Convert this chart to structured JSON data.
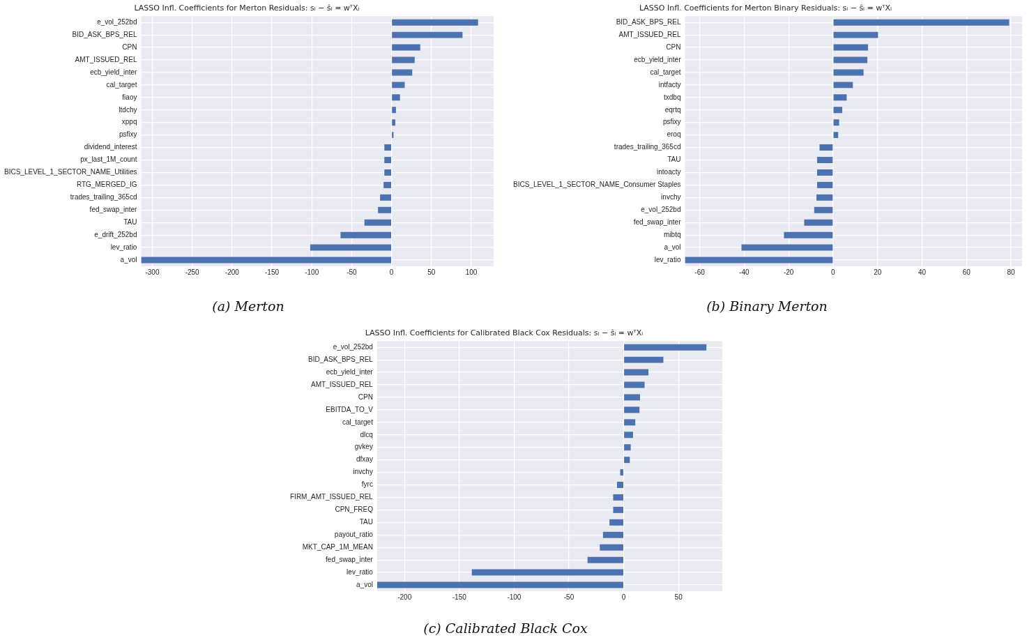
{
  "chart_data": [
    {
      "type": "bar",
      "orientation": "horizontal",
      "title": "LASSO Infl. Coefficients for Merton Residuals: sᵢ − ŝᵢ = wᵀXᵢ",
      "annotations": [
        "(a) Merton"
      ],
      "color": "#4c72b0",
      "grid": true,
      "xlim": [
        -314,
        128
      ],
      "xticks": [
        -300,
        -250,
        -200,
        -150,
        -100,
        -50,
        0,
        50,
        100
      ],
      "categories": [
        "e_vol_252bd",
        "BID_ASK_BPS_REL",
        "CPN",
        "AMT_ISSUED_REL",
        "ecb_yield_inter",
        "cal_target",
        "fiaoy",
        "ltdchy",
        "xppq",
        "psfixy",
        "dividend_interest",
        "px_last_1M_count",
        "BICS_LEVEL_1_SECTOR_NAME_Utilities",
        "RTG_MERGED_IG",
        "trades_trailing_365cd",
        "fed_swap_inter",
        "TAU",
        "e_drift_252bd",
        "lev_ratio",
        "a_vol"
      ],
      "values": [
        108.5,
        89,
        36,
        29,
        26,
        16.5,
        10.6,
        5.5,
        4.7,
        2.5,
        -9,
        -9,
        -9,
        -10,
        -14.4,
        -17,
        -34,
        -64,
        -102,
        -314
      ]
    },
    {
      "type": "bar",
      "orientation": "horizontal",
      "title": "LASSO Infl. Coefficients for Merton Binary Residuals: sᵢ − ŝᵢ = wᵀXᵢ",
      "annotations": [
        "(b) Binary Merton"
      ],
      "color": "#4c72b0",
      "grid": true,
      "xlim": [
        -66.6,
        85
      ],
      "xticks": [
        -60,
        -40,
        -20,
        0,
        20,
        40,
        60,
        80
      ],
      "categories": [
        "BID_ASK_BPS_REL",
        "AMT_ISSUED_REL",
        "CPN",
        "ecb_yield_inter",
        "cal_target",
        "intfacty",
        "txdbq",
        "eqrtq",
        "psfixy",
        "eroq",
        "trades_trailing_365cd",
        "TAU",
        "intoacty",
        "BICS_LEVEL_1_SECTOR_NAME_Consumer Staples",
        "invchy",
        "e_vol_252bd",
        "fed_swap_inter",
        "mibtq",
        "a_vol",
        "lev_ratio"
      ],
      "values": [
        79.2,
        20.2,
        15.7,
        15.4,
        13.7,
        8.9,
        6.1,
        4.1,
        2.7,
        2.3,
        -6.1,
        -7.2,
        -7.2,
        -7.2,
        -7.5,
        -8.5,
        -13,
        -22.1,
        -41.2,
        -66.6
      ]
    },
    {
      "type": "bar",
      "orientation": "horizontal",
      "title": "LASSO Infl. Coefficients for Calibrated Black Cox Residuals: sᵢ − ŝᵢ = wᵀXᵢ",
      "annotations": [
        "(c) Calibrated Black Cox"
      ],
      "color": "#4c72b0",
      "grid": true,
      "xlim": [
        -225,
        90
      ],
      "xticks": [
        -200,
        -150,
        -100,
        -50,
        0,
        50
      ],
      "categories": [
        "e_vol_252bd",
        "BID_ASK_BPS_REL",
        "ecb_yield_inter",
        "AMT_ISSUED_REL",
        "CPN",
        "EBITDA_TO_V",
        "cal_target",
        "dlcq",
        "gvkey",
        "dfxay",
        "invchy",
        "fyrc",
        "FIRM_AMT_ISSUED_REL",
        "CPN_FREQ",
        "TAU",
        "payout_ratio",
        "MKT_CAP_1M_MEAN",
        "fed_swap_inter",
        "lev_ratio",
        "a_vol"
      ],
      "values": [
        75.5,
        36.2,
        22.6,
        19.1,
        14.9,
        14.4,
        10.6,
        8.5,
        6.4,
        5.6,
        -3.2,
        -6.1,
        -9.6,
        -9.6,
        -13,
        -18.9,
        -21.8,
        -33,
        -138.6,
        -225
      ]
    }
  ]
}
